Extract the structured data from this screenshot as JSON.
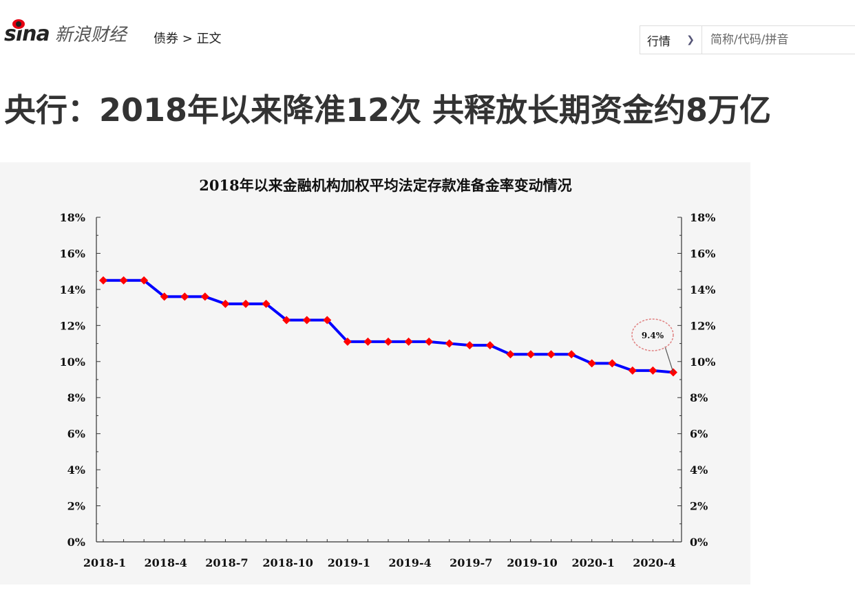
{
  "header": {
    "logo_text": "sina",
    "brand": "新浪财经",
    "breadcrumb": [
      "债券",
      ">",
      "正文"
    ]
  },
  "search": {
    "market_select": "行情",
    "placeholder": "简称/代码/拼音",
    "icon": "chevron-down-icon"
  },
  "article": {
    "title": "央行：2018年以来降准12次 共释放长期资金约8万亿"
  },
  "colors": {
    "line": "#0000ff",
    "marker": "#ff0000",
    "annotation_circle": "#e08080"
  },
  "chart_data": {
    "type": "line",
    "title": "2018年以来金融机构加权平均法定存款准备金率变动情况",
    "x": [
      "2018-1",
      "2018-2",
      "2018-3",
      "2018-4",
      "2018-5",
      "2018-6",
      "2018-7",
      "2018-8",
      "2018-9",
      "2018-10",
      "2018-11",
      "2018-12",
      "2019-1",
      "2019-2",
      "2019-3",
      "2019-4",
      "2019-5",
      "2019-6",
      "2019-7",
      "2019-8",
      "2019-9",
      "2019-10",
      "2019-11",
      "2019-12",
      "2020-1",
      "2020-2",
      "2020-3",
      "2020-4",
      "2020-5"
    ],
    "values": [
      14.5,
      14.5,
      14.5,
      13.6,
      13.6,
      13.6,
      13.2,
      13.2,
      13.2,
      12.3,
      12.3,
      12.3,
      11.1,
      11.1,
      11.1,
      11.1,
      11.1,
      11.0,
      10.9,
      10.9,
      10.4,
      10.4,
      10.4,
      10.4,
      9.9,
      9.9,
      9.5,
      9.5,
      9.4
    ],
    "x_tick_labels": [
      "2018-1",
      "2018-4",
      "2018-7",
      "2018-10",
      "2019-1",
      "2019-4",
      "2019-7",
      "2019-10",
      "2020-1",
      "2020-4"
    ],
    "y_tick_labels": [
      "0%",
      "2%",
      "4%",
      "6%",
      "8%",
      "10%",
      "12%",
      "14%",
      "16%",
      "18%"
    ],
    "ylim": [
      0,
      18
    ],
    "dual_y_axis": true,
    "grid": false,
    "annotation": "9.4%"
  }
}
